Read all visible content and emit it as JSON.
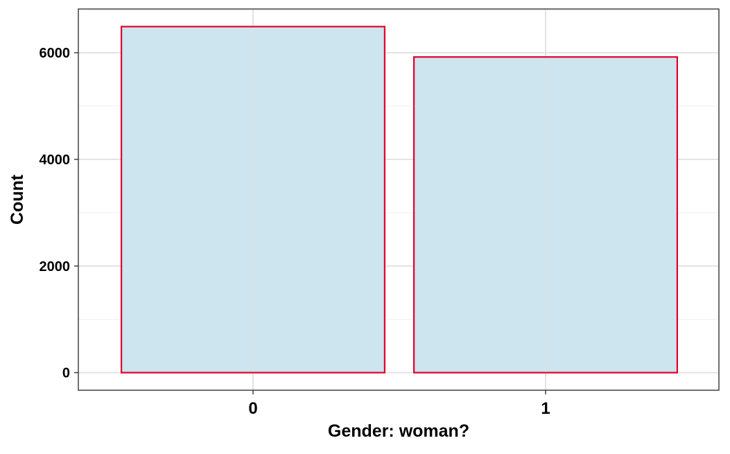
{
  "chart_data": {
    "type": "bar",
    "categories": [
      "0",
      "1"
    ],
    "values": [
      6490,
      5920
    ],
    "title": "",
    "xlabel": "Gender: woman?",
    "ylabel": "Count",
    "ylim": [
      -330,
      6820
    ],
    "yticks": [
      0,
      2000,
      4000,
      6000
    ],
    "ytick_labels": [
      "0",
      "2000",
      "4000",
      "6000"
    ],
    "grid": true,
    "legend": "none",
    "colors": {
      "bar_fill": "#cce5ef",
      "bar_stroke": "#e3002b",
      "grid_major": "#e2e2e2",
      "grid_minor": "#efefef",
      "panel_border": "#333333"
    }
  }
}
